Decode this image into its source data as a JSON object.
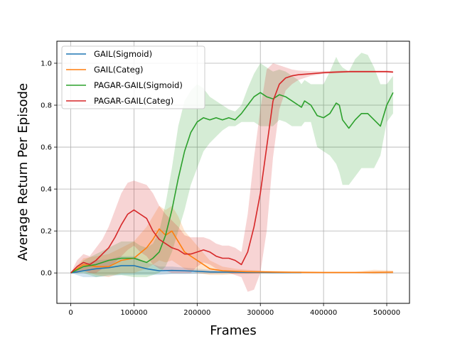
{
  "chart_data": {
    "type": "line",
    "title": "",
    "xlabel": "Frames",
    "ylabel": "Average Return Per Episode",
    "xlim": [
      -22000,
      536000
    ],
    "ylim": [
      -0.145,
      1.105
    ],
    "x_ticks": [
      0,
      100000,
      200000,
      300000,
      400000,
      500000
    ],
    "x_tick_labels": [
      "0",
      "100000",
      "200000",
      "300000",
      "400000",
      "500000"
    ],
    "y_ticks": [
      0.0,
      0.2,
      0.4,
      0.6,
      0.8,
      1.0
    ],
    "y_tick_labels": [
      "0.0",
      "0.2",
      "0.4",
      "0.6",
      "0.8",
      "1.0"
    ],
    "grid": true,
    "legend_position": "top-left",
    "series": [
      {
        "name": "GAIL(Sigmoid)",
        "color": "#1f77b4",
        "x": [
          0,
          20000,
          40000,
          60000,
          80000,
          100000,
          120000,
          140000,
          160000,
          180000,
          200000,
          220000,
          240000,
          260000,
          280000,
          300000,
          320000,
          340000,
          365000
        ],
        "y": [
          0.0,
          0.01,
          0.02,
          0.025,
          0.035,
          0.035,
          0.02,
          0.01,
          0.012,
          0.01,
          0.008,
          0.005,
          0.004,
          0.004,
          0.003,
          0.003,
          0.002,
          0.002,
          0.002
        ],
        "lower": [
          0.0,
          -0.02,
          -0.02,
          -0.015,
          -0.01,
          -0.01,
          -0.01,
          -0.01,
          -0.005,
          -0.005,
          -0.004,
          -0.003,
          -0.002,
          -0.002,
          -0.002,
          -0.002,
          -0.002,
          -0.002,
          -0.002
        ],
        "upper": [
          0.0,
          0.04,
          0.06,
          0.065,
          0.08,
          0.08,
          0.05,
          0.03,
          0.03,
          0.025,
          0.02,
          0.015,
          0.01,
          0.01,
          0.008,
          0.008,
          0.006,
          0.006,
          0.006
        ]
      },
      {
        "name": "GAIL(Categ)",
        "color": "#ff7f0e",
        "x": [
          0,
          20000,
          40000,
          60000,
          80000,
          100000,
          120000,
          130000,
          140000,
          150000,
          160000,
          170000,
          180000,
          200000,
          220000,
          240000,
          260000,
          280000,
          300000,
          350000,
          400000,
          450000,
          480000,
          510000
        ],
        "y": [
          0.0,
          0.04,
          0.03,
          0.03,
          0.06,
          0.07,
          0.12,
          0.16,
          0.21,
          0.18,
          0.2,
          0.15,
          0.1,
          0.06,
          0.02,
          0.01,
          0.008,
          0.006,
          0.005,
          0.003,
          0.002,
          0.002,
          0.003,
          0.004
        ],
        "lower": [
          0.0,
          0.01,
          -0.01,
          -0.02,
          0.0,
          0.0,
          0.02,
          0.04,
          0.06,
          0.05,
          0.06,
          0.04,
          0.02,
          0.0,
          -0.01,
          -0.01,
          -0.005,
          -0.005,
          -0.003,
          -0.002,
          -0.002,
          -0.002,
          -0.006,
          -0.004
        ],
        "upper": [
          0.0,
          0.07,
          0.08,
          0.09,
          0.12,
          0.15,
          0.22,
          0.27,
          0.32,
          0.3,
          0.32,
          0.27,
          0.2,
          0.13,
          0.06,
          0.03,
          0.02,
          0.015,
          0.012,
          0.008,
          0.006,
          0.006,
          0.015,
          0.012
        ]
      },
      {
        "name": "PAGAR-GAIL(Sigmoid)",
        "color": "#2ca02c",
        "x": [
          0,
          20000,
          40000,
          60000,
          80000,
          100000,
          110000,
          120000,
          130000,
          140000,
          150000,
          160000,
          170000,
          180000,
          190000,
          200000,
          210000,
          220000,
          230000,
          240000,
          250000,
          260000,
          270000,
          280000,
          290000,
          300000,
          310000,
          320000,
          330000,
          340000,
          350000,
          360000,
          365000,
          370000,
          380000,
          390000,
          400000,
          410000,
          420000,
          425000,
          430000,
          440000,
          450000,
          460000,
          470000,
          480000,
          490000,
          500000,
          510000
        ],
        "y": [
          0.0,
          0.03,
          0.04,
          0.06,
          0.07,
          0.07,
          0.06,
          0.05,
          0.07,
          0.1,
          0.18,
          0.3,
          0.45,
          0.58,
          0.67,
          0.72,
          0.74,
          0.73,
          0.74,
          0.73,
          0.74,
          0.73,
          0.76,
          0.8,
          0.84,
          0.86,
          0.84,
          0.83,
          0.85,
          0.84,
          0.82,
          0.8,
          0.79,
          0.82,
          0.8,
          0.75,
          0.74,
          0.76,
          0.81,
          0.8,
          0.73,
          0.69,
          0.73,
          0.76,
          0.76,
          0.73,
          0.7,
          0.8,
          0.86
        ],
        "lower": [
          0.0,
          0.0,
          -0.02,
          -0.01,
          -0.01,
          -0.02,
          -0.02,
          -0.02,
          -0.01,
          0.0,
          0.03,
          0.1,
          0.2,
          0.3,
          0.42,
          0.5,
          0.58,
          0.62,
          0.65,
          0.68,
          0.7,
          0.7,
          0.72,
          0.72,
          0.72,
          0.7,
          0.7,
          0.7,
          0.73,
          0.72,
          0.7,
          0.7,
          0.7,
          0.72,
          0.72,
          0.6,
          0.58,
          0.56,
          0.52,
          0.48,
          0.42,
          0.42,
          0.46,
          0.5,
          0.5,
          0.5,
          0.56,
          0.72,
          0.76
        ],
        "upper": [
          0.0,
          0.06,
          0.09,
          0.12,
          0.15,
          0.15,
          0.13,
          0.12,
          0.14,
          0.2,
          0.33,
          0.5,
          0.7,
          0.82,
          0.87,
          0.9,
          0.88,
          0.84,
          0.82,
          0.8,
          0.78,
          0.77,
          0.8,
          0.88,
          0.95,
          1.0,
          0.98,
          0.96,
          0.97,
          0.96,
          0.94,
          0.92,
          0.9,
          0.92,
          0.9,
          0.9,
          0.9,
          0.96,
          1.03,
          1.0,
          0.98,
          0.96,
          1.02,
          1.05,
          1.04,
          0.98,
          0.9,
          0.9,
          0.94
        ]
      },
      {
        "name": "PAGAR-GAIL(Categ)",
        "color": "#d62728",
        "x": [
          0,
          10000,
          20000,
          30000,
          40000,
          50000,
          60000,
          70000,
          80000,
          90000,
          100000,
          110000,
          120000,
          130000,
          140000,
          150000,
          160000,
          170000,
          180000,
          190000,
          200000,
          210000,
          220000,
          230000,
          240000,
          250000,
          260000,
          270000,
          280000,
          290000,
          300000,
          310000,
          320000,
          330000,
          340000,
          350000,
          360000,
          380000,
          400000,
          420000,
          440000,
          460000,
          480000,
          500000,
          510000
        ],
        "y": [
          0.0,
          0.03,
          0.05,
          0.04,
          0.06,
          0.09,
          0.12,
          0.17,
          0.23,
          0.28,
          0.3,
          0.28,
          0.26,
          0.2,
          0.16,
          0.14,
          0.12,
          0.11,
          0.09,
          0.09,
          0.1,
          0.11,
          0.1,
          0.08,
          0.07,
          0.07,
          0.06,
          0.04,
          0.1,
          0.22,
          0.38,
          0.6,
          0.82,
          0.9,
          0.93,
          0.94,
          0.945,
          0.95,
          0.955,
          0.958,
          0.96,
          0.96,
          0.96,
          0.96,
          0.958
        ],
        "lower": [
          0.0,
          0.0,
          0.01,
          0.0,
          0.0,
          0.02,
          0.03,
          0.05,
          0.08,
          0.11,
          0.13,
          0.1,
          0.08,
          0.04,
          0.02,
          0.01,
          0.0,
          0.0,
          0.0,
          0.0,
          0.03,
          0.05,
          0.04,
          0.02,
          0.01,
          0.0,
          -0.01,
          -0.02,
          -0.09,
          -0.08,
          0.0,
          0.2,
          0.55,
          0.78,
          0.87,
          0.9,
          0.92,
          0.94,
          0.95,
          0.952,
          0.955,
          0.955,
          0.955,
          0.955,
          0.953
        ],
        "upper": [
          0.0,
          0.06,
          0.09,
          0.08,
          0.12,
          0.16,
          0.22,
          0.3,
          0.38,
          0.43,
          0.44,
          0.43,
          0.42,
          0.38,
          0.32,
          0.28,
          0.25,
          0.22,
          0.18,
          0.17,
          0.17,
          0.17,
          0.16,
          0.14,
          0.13,
          0.13,
          0.12,
          0.1,
          0.28,
          0.55,
          0.78,
          0.97,
          1.0,
          0.99,
          0.98,
          0.97,
          0.965,
          0.962,
          0.962,
          0.963,
          0.965,
          0.965,
          0.965,
          0.965,
          0.963
        ]
      }
    ]
  }
}
